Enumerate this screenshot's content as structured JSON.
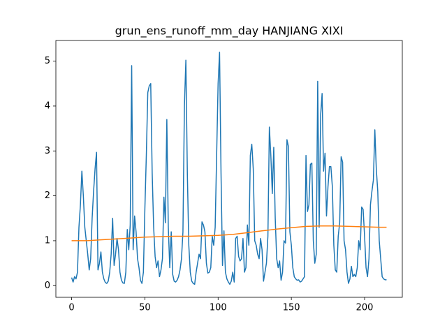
{
  "chart_data": {
    "type": "line",
    "title": "grun_ens_runoff_mm_day HANJIANG XIXI",
    "xlim": [
      -10.75,
      225.75
    ],
    "ylim": [
      -0.26,
      5.46
    ],
    "xticks": [
      0,
      50,
      100,
      150,
      200
    ],
    "yticks": [
      0,
      1,
      2,
      3,
      4,
      5
    ],
    "grid": false,
    "series": [
      {
        "color": "#1f77b4",
        "x": [
          0,
          1,
          2,
          3,
          4,
          5,
          6,
          7,
          8,
          9,
          10,
          11,
          12,
          13,
          14,
          15,
          16,
          17,
          18,
          19,
          20,
          21,
          22,
          23,
          24,
          25,
          26,
          27,
          28,
          29,
          30,
          31,
          32,
          33,
          34,
          35,
          36,
          37,
          38,
          39,
          40,
          41,
          42,
          43,
          44,
          45,
          46,
          47,
          48,
          49,
          50,
          51,
          52,
          53,
          54,
          55,
          56,
          57,
          58,
          59,
          60,
          61,
          62,
          63,
          64,
          65,
          66,
          67,
          68,
          69,
          70,
          71,
          72,
          73,
          74,
          75,
          76,
          77,
          78,
          79,
          80,
          81,
          82,
          83,
          84,
          85,
          86,
          87,
          88,
          89,
          90,
          91,
          92,
          93,
          94,
          95,
          96,
          97,
          98,
          99,
          100,
          101,
          102,
          103,
          104,
          105,
          106,
          107,
          108,
          109,
          110,
          111,
          112,
          113,
          114,
          115,
          116,
          117,
          118,
          119,
          120,
          121,
          122,
          123,
          124,
          125,
          126,
          127,
          128,
          129,
          130,
          131,
          132,
          133,
          134,
          135,
          136,
          137,
          138,
          139,
          140,
          141,
          142,
          143,
          144,
          145,
          146,
          147,
          148,
          149,
          150,
          151,
          152,
          153,
          154,
          155,
          156,
          157,
          158,
          159,
          160,
          161,
          162,
          163,
          164,
          165,
          166,
          167,
          168,
          169,
          170,
          171,
          172,
          173,
          174,
          175,
          176,
          177,
          178,
          179,
          180,
          181,
          182,
          183,
          184,
          185,
          186,
          187,
          188,
          189,
          190,
          191,
          192,
          193,
          194,
          195,
          196,
          197,
          198,
          199,
          200,
          201,
          202,
          203,
          204,
          205,
          206,
          207,
          208,
          209,
          210,
          211,
          212,
          213,
          214,
          215
        ],
        "values": [
          0.18,
          0.08,
          0.2,
          0.15,
          0.3,
          1.3,
          1.8,
          2.55,
          2.0,
          1.3,
          1.0,
          0.7,
          0.35,
          0.6,
          1.5,
          2.1,
          2.6,
          2.97,
          0.35,
          0.5,
          0.75,
          0.3,
          0.15,
          0.07,
          0.05,
          0.1,
          0.3,
          0.7,
          1.5,
          0.45,
          0.7,
          1.05,
          0.8,
          0.3,
          0.12,
          0.06,
          0.05,
          0.3,
          1.25,
          0.8,
          1.35,
          4.9,
          0.8,
          1.55,
          1.2,
          0.6,
          0.4,
          0.12,
          0.05,
          0.3,
          1.7,
          2.9,
          4.3,
          4.45,
          4.5,
          2.5,
          1.3,
          0.65,
          0.4,
          0.55,
          0.2,
          0.35,
          0.6,
          1.97,
          1.4,
          3.7,
          1.3,
          0.4,
          1.2,
          0.25,
          0.1,
          0.08,
          0.12,
          0.2,
          0.35,
          0.6,
          1.2,
          4.0,
          5.02,
          2.5,
          0.9,
          0.3,
          0.1,
          0.05,
          0.03,
          0.3,
          0.5,
          0.7,
          0.6,
          1.42,
          1.35,
          1.2,
          0.5,
          0.28,
          0.3,
          0.4,
          1.1,
          0.9,
          1.3,
          2.9,
          4.5,
          5.2,
          2.5,
          0.45,
          1.22,
          0.3,
          0.15,
          0.08,
          0.03,
          0.1,
          0.3,
          0.08,
          1.05,
          1.1,
          0.65,
          0.55,
          0.6,
          1.05,
          0.3,
          0.4,
          1.35,
          0.9,
          2.9,
          3.15,
          2.6,
          1.0,
          0.9,
          0.7,
          0.6,
          1.05,
          0.8,
          0.1,
          0.3,
          0.5,
          1.1,
          3.53,
          2.9,
          2.05,
          3.08,
          1.5,
          0.6,
          0.4,
          0.55,
          0.12,
          0.3,
          1.0,
          0.95,
          3.25,
          3.1,
          1.2,
          0.9,
          0.4,
          0.2,
          0.15,
          0.12,
          0.13,
          0.08,
          0.1,
          0.15,
          0.2,
          2.9,
          1.65,
          1.8,
          2.7,
          2.73,
          1.0,
          0.5,
          0.7,
          4.55,
          1.3,
          3.8,
          4.28,
          2.55,
          2.95,
          1.55,
          2.2,
          2.65,
          2.65,
          2.2,
          0.9,
          0.35,
          0.3,
          1.1,
          1.4,
          2.87,
          2.75,
          1.0,
          0.8,
          0.3,
          0.05,
          0.15,
          0.43,
          0.2,
          0.25,
          0.2,
          0.4,
          1.0,
          0.8,
          1.75,
          1.7,
          1.1,
          0.4,
          0.2,
          0.6,
          1.8,
          2.1,
          2.35,
          3.47,
          2.6,
          2.1,
          1.0,
          0.6,
          0.2,
          0.15,
          0.13,
          0.13
        ]
      },
      {
        "color": "#ff7f0e",
        "x": [
          0,
          10,
          20,
          30,
          40,
          50,
          60,
          70,
          80,
          90,
          100,
          110,
          120,
          130,
          140,
          150,
          160,
          170,
          180,
          190,
          200,
          210,
          215
        ],
        "values": [
          1.0,
          1.0,
          1.02,
          1.04,
          1.06,
          1.08,
          1.09,
          1.1,
          1.1,
          1.11,
          1.12,
          1.14,
          1.18,
          1.22,
          1.26,
          1.29,
          1.32,
          1.33,
          1.33,
          1.32,
          1.31,
          1.3,
          1.3
        ]
      }
    ]
  }
}
